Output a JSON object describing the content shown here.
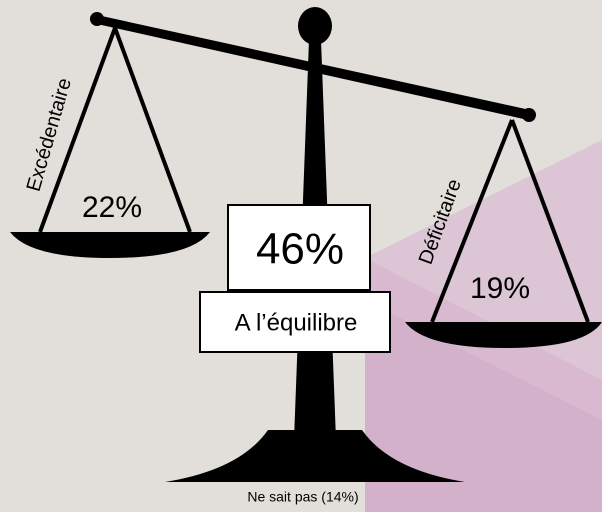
{
  "left": {
    "label": "Excédentaire",
    "value": "22%"
  },
  "center": {
    "label": "A l’équilibre",
    "value": "46%"
  },
  "right": {
    "label": "Déficitaire",
    "value": "19%"
  },
  "footnote": "Ne sait pas (14%)"
}
